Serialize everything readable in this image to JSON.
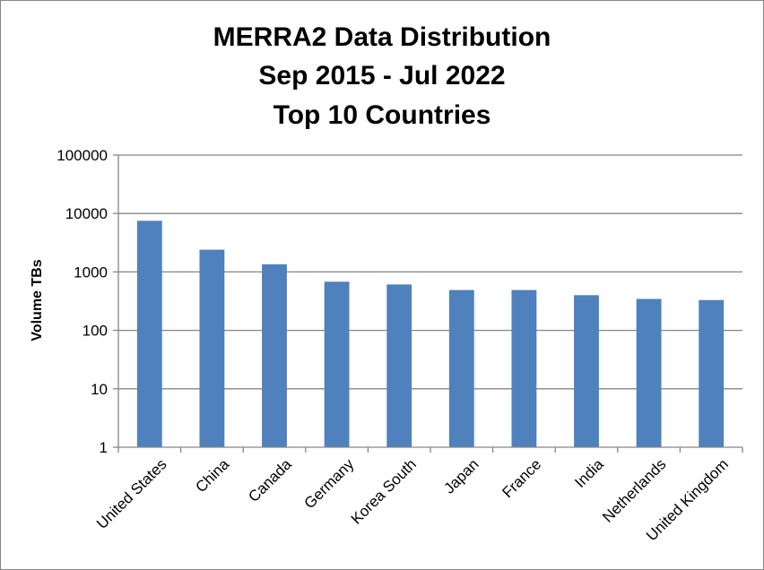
{
  "chart_data": {
    "type": "bar",
    "title": [
      "MERRA2 Data Distribution",
      "Sep 2015 - Jul 2022",
      "Top 10 Countries"
    ],
    "xlabel": "",
    "ylabel": "Volume TBs",
    "yscale": "log",
    "ylim": [
      1,
      100000
    ],
    "yticks": [
      "1",
      "10",
      "100",
      "1000",
      "10000",
      "100000"
    ],
    "grid": true,
    "legend": "none",
    "categories": [
      "United States",
      "China",
      "Canada",
      "Germany",
      "Korea South",
      "Japan",
      "France",
      "India",
      "Netherlands",
      "United Kingdom"
    ],
    "series": [
      {
        "values": [
          7500,
          2400,
          1350,
          680,
          610,
          490,
          490,
          400,
          345,
          330
        ]
      }
    ],
    "colors": {
      "bar": "#4f81bd",
      "grid": "#868686",
      "axis": "#868686"
    }
  }
}
